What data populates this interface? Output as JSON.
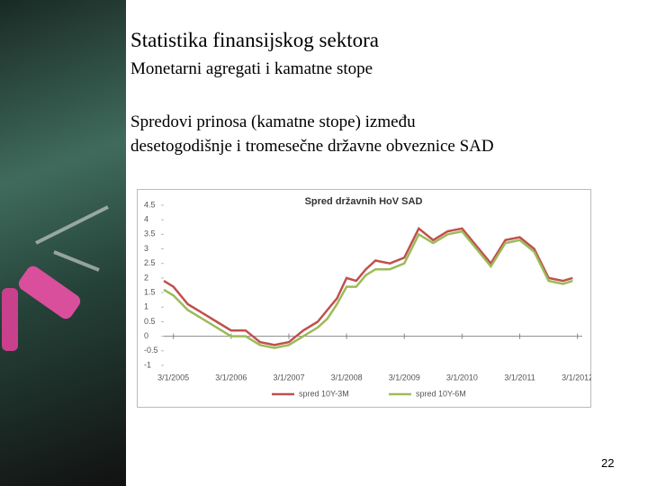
{
  "slide": {
    "title": "Statistika finansijskog sektora",
    "subtitle": "Monetarni agregati i kamatne stope",
    "body": [
      "Spredovi prinosa (kamatne stope) između",
      "desetogodišnje i tromesečne državne obveznice SAD"
    ],
    "page_number": "22"
  },
  "chart_data": {
    "type": "line",
    "title": "Spred državnih HoV SAD",
    "x": [
      "1/1/2005",
      "3/1/2005",
      "6/1/2005",
      "9/1/2005",
      "12/1/2005",
      "3/1/2006",
      "6/1/2006",
      "9/1/2006",
      "12/1/2006",
      "3/1/2007",
      "6/1/2007",
      "9/1/2007",
      "11/1/2007",
      "1/1/2008",
      "3/1/2008",
      "5/1/2008",
      "7/1/2008",
      "9/1/2008",
      "12/1/2008",
      "3/1/2009",
      "6/1/2009",
      "9/1/2009",
      "12/1/2009",
      "3/1/2010",
      "6/1/2010",
      "9/1/2010",
      "12/1/2010",
      "3/1/2011",
      "6/1/2011",
      "9/1/2011",
      "12/1/2011",
      "2/1/2012"
    ],
    "series": [
      {
        "name": "spred 10Y-3M",
        "color": "#c0504d",
        "values": [
          1.9,
          1.7,
          1.1,
          0.8,
          0.5,
          0.2,
          0.2,
          -0.2,
          -0.3,
          -0.2,
          0.2,
          0.5,
          0.9,
          1.3,
          2.0,
          1.9,
          2.3,
          2.6,
          2.5,
          2.7,
          3.7,
          3.3,
          3.6,
          3.7,
          3.1,
          2.5,
          3.3,
          3.4,
          3.0,
          2.0,
          1.9,
          2.0
        ]
      },
      {
        "name": "spred 10Y-6M",
        "color": "#9bbb59",
        "values": [
          1.6,
          1.4,
          0.9,
          0.6,
          0.3,
          0.0,
          0.0,
          -0.3,
          -0.4,
          -0.3,
          0.0,
          0.3,
          0.6,
          1.1,
          1.7,
          1.7,
          2.1,
          2.3,
          2.3,
          2.5,
          3.5,
          3.2,
          3.5,
          3.6,
          3.0,
          2.4,
          3.2,
          3.3,
          2.9,
          1.9,
          1.8,
          1.9
        ]
      }
    ],
    "xlim": [
      "1/1/2005",
      "4/1/2012"
    ],
    "xticks": [
      "3/1/2005",
      "3/1/2006",
      "3/1/2007",
      "3/1/2008",
      "3/1/2009",
      "3/1/2010",
      "3/1/2011",
      "3/1/2012"
    ],
    "ylim": [
      -1,
      4.5
    ],
    "yticks": [
      -1,
      -0.5,
      0,
      0.5,
      1,
      1.5,
      2,
      2.5,
      3,
      3.5,
      4,
      4.5
    ],
    "legend": "bottom"
  }
}
